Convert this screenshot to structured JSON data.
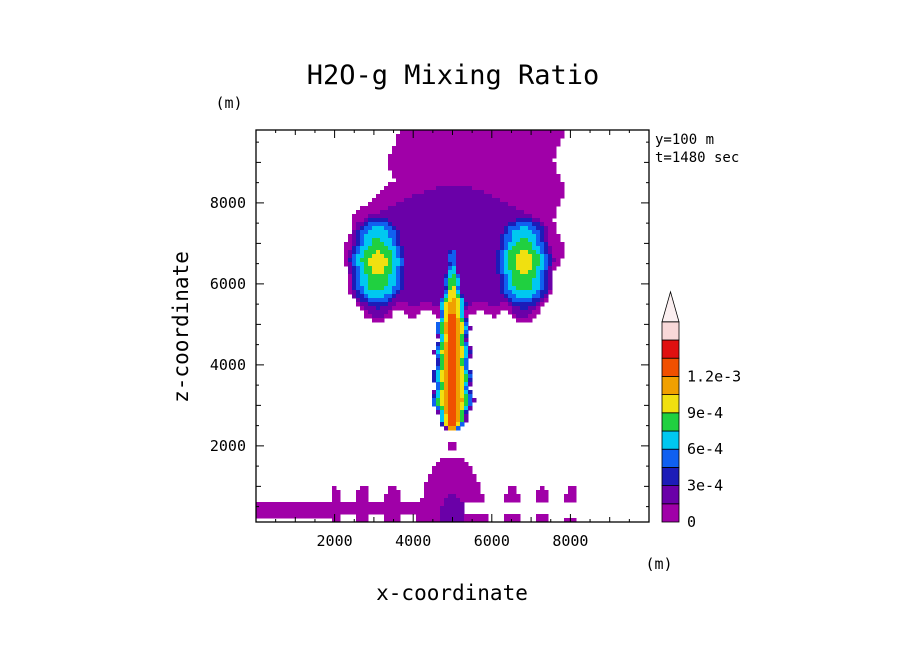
{
  "chart_data": {
    "type": "heatmap",
    "title": "H2O-g Mixing Ratio",
    "xlabel": "x-coordinate",
    "ylabel": "z-coordinate",
    "x_unit": "(m)",
    "y_unit": "(m)",
    "annotations": [
      "y=100 m",
      "t=1480 sec"
    ],
    "xlim": [
      0,
      10000
    ],
    "ylim": [
      120,
      9800
    ],
    "x_ticks": [
      2000,
      4000,
      6000,
      8000
    ],
    "y_ticks": [
      2000,
      4000,
      6000,
      8000
    ],
    "colorbar": {
      "levels": [
        0,
        0.00015,
        0.0003,
        0.00045,
        0.0006,
        0.00075,
        0.0009,
        0.00105,
        0.0012,
        0.00135
      ],
      "labels": [
        "0",
        "3e-4",
        "6e-4",
        "9e-4",
        "1.2e-3"
      ],
      "label_values": [
        0,
        0.0003,
        0.0006,
        0.0009,
        0.0012
      ],
      "colors": [
        "#a000a8",
        "#6a00a8",
        "#1c1cb8",
        "#1060f0",
        "#00c8f0",
        "#20d040",
        "#f0e010",
        "#f0a000",
        "#f05000",
        "#e01010",
        "#f8d8d8"
      ],
      "extend": "max"
    },
    "features": [
      {
        "name": "upper-plume-column",
        "x": [
          3500,
          7700
        ],
        "z": [
          6500,
          9800
        ],
        "value": 5e-05
      },
      {
        "name": "cap-outer-shell",
        "center": [
          5000,
          6900
        ],
        "radii": [
          2700,
          1900
        ],
        "value": 0.0001
      },
      {
        "name": "cap-interior",
        "center": [
          5000,
          6800
        ],
        "radii": [
          2200,
          1600
        ],
        "value": 0.00025
      },
      {
        "name": "left-lobe-max",
        "x": 3100,
        "z": 6500,
        "value": 0.00095
      },
      {
        "name": "right-lobe-max",
        "x": 6800,
        "z": 6500,
        "value": 0.00095
      },
      {
        "name": "stem-core",
        "x": 5000,
        "z": [
          2600,
          6500
        ],
        "value": 0.00125
      },
      {
        "name": "small-blob",
        "x": 5000,
        "z": 2000,
        "value": 5e-05
      },
      {
        "name": "surface-mound",
        "x": [
          4200,
          5900
        ],
        "z": [
          120,
          1800
        ],
        "value": 8e-05
      },
      {
        "name": "surface-layer",
        "x": [
          0,
          10000
        ],
        "z": [
          400,
          560
        ],
        "value": 5e-05
      }
    ]
  }
}
